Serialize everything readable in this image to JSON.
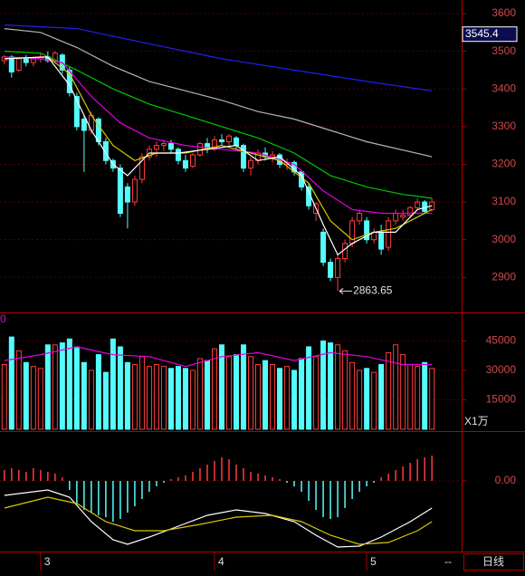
{
  "chart_data": [
    {
      "type": "candlestick",
      "ohlc": [
        [
          3475,
          3490,
          3465,
          3485
        ],
        [
          3485,
          3490,
          3430,
          3445
        ],
        [
          3450,
          3485,
          3445,
          3480
        ],
        [
          3480,
          3490,
          3460,
          3470
        ],
        [
          3470,
          3485,
          3460,
          3480
        ],
        [
          3480,
          3495,
          3470,
          3485
        ],
        [
          3485,
          3500,
          3470,
          3475
        ],
        [
          3475,
          3500,
          3470,
          3495
        ],
        [
          3490,
          3495,
          3440,
          3450
        ],
        [
          3450,
          3460,
          3380,
          3390
        ],
        [
          3380,
          3390,
          3290,
          3300
        ],
        [
          3320,
          3330,
          3180,
          3290
        ],
        [
          3290,
          3340,
          3280,
          3330
        ],
        [
          3320,
          3325,
          3250,
          3260
        ],
        [
          3260,
          3270,
          3200,
          3210
        ],
        [
          3210,
          3215,
          3180,
          3190
        ],
        [
          3190,
          3200,
          3060,
          3070
        ],
        [
          3140,
          3150,
          3030,
          3100
        ],
        [
          3100,
          3170,
          3090,
          3160
        ],
        [
          3160,
          3230,
          3150,
          3220
        ],
        [
          3220,
          3250,
          3210,
          3240
        ],
        [
          3240,
          3260,
          3220,
          3250
        ],
        [
          3250,
          3265,
          3235,
          3255
        ],
        [
          3255,
          3265,
          3230,
          3240
        ],
        [
          3240,
          3245,
          3200,
          3210
        ],
        [
          3210,
          3225,
          3180,
          3190
        ],
        [
          3195,
          3230,
          3190,
          3225
        ],
        [
          3225,
          3260,
          3220,
          3255
        ],
        [
          3255,
          3270,
          3230,
          3240
        ],
        [
          3240,
          3275,
          3235,
          3265
        ],
        [
          3265,
          3280,
          3250,
          3260
        ],
        [
          3260,
          3280,
          3245,
          3275
        ],
        [
          3270,
          3275,
          3240,
          3250
        ],
        [
          3250,
          3255,
          3180,
          3190
        ],
        [
          3190,
          3220,
          3170,
          3210
        ],
        [
          3210,
          3240,
          3200,
          3230
        ],
        [
          3230,
          3245,
          3210,
          3220
        ],
        [
          3220,
          3235,
          3205,
          3225
        ],
        [
          3225,
          3230,
          3190,
          3200
        ],
        [
          3200,
          3215,
          3185,
          3205
        ],
        [
          3205,
          3210,
          3170,
          3180
        ],
        [
          3180,
          3185,
          3130,
          3140
        ],
        [
          3140,
          3150,
          3080,
          3090
        ],
        [
          3070,
          3100,
          3050,
          3095
        ],
        [
          3020,
          3030,
          2930,
          2940
        ],
        [
          2940,
          2950,
          2890,
          2900
        ],
        [
          2900,
          2960,
          2863.65,
          2950
        ],
        [
          2950,
          3000,
          2940,
          2990
        ],
        [
          2990,
          3060,
          2980,
          3050
        ],
        [
          3050,
          3080,
          3040,
          3070
        ],
        [
          3050,
          3060,
          2990,
          3000
        ],
        [
          3000,
          3030,
          2990,
          3020
        ],
        [
          3020,
          3040,
          2960,
          2975
        ],
        [
          2980,
          3060,
          2970,
          3050
        ],
        [
          3050,
          3080,
          3040,
          3070
        ],
        [
          3060,
          3080,
          3050,
          3065
        ],
        [
          3065,
          3090,
          3060,
          3085
        ],
        [
          3085,
          3110,
          3080,
          3100
        ],
        [
          3100,
          3105,
          3070,
          3075
        ],
        [
          3080,
          3110,
          3075,
          3100
        ]
      ],
      "up_color": "#ff3c3c",
      "down_color": "#54fcfc",
      "xlim": [
        -0.6,
        63.1
      ],
      "xticks": [
        {
          "value": 5,
          "label": "3"
        },
        {
          "value": 29,
          "label": "4"
        },
        {
          "value": 50,
          "label": "5"
        }
      ],
      "ylim": [
        2807,
        3636
      ],
      "yticks": [
        2900,
        3000,
        3100,
        3200,
        3300,
        3400,
        3500,
        3600
      ],
      "grid": true,
      "lines": [
        {
          "color": "#2020f0",
          "x": [
            0,
            10,
            20,
            30,
            40,
            50,
            59
          ],
          "values": [
            3570,
            3560,
            3520,
            3480,
            3450,
            3420,
            3395
          ]
        },
        {
          "color": "#b4b4b4",
          "x": [
            0,
            5,
            10,
            15,
            20,
            25,
            30,
            35,
            40,
            45,
            50,
            59
          ],
          "values": [
            3560,
            3550,
            3510,
            3460,
            3420,
            3395,
            3370,
            3340,
            3320,
            3290,
            3260,
            3220
          ]
        },
        {
          "color": "#00c800",
          "x": [
            0,
            5,
            10,
            15,
            20,
            25,
            30,
            35,
            40,
            45,
            50,
            55,
            59
          ],
          "values": [
            3500,
            3495,
            3450,
            3400,
            3360,
            3330,
            3300,
            3270,
            3230,
            3170,
            3140,
            3120,
            3110
          ]
        },
        {
          "color": "#e000e0",
          "x": [
            0,
            5,
            8,
            12,
            16,
            20,
            25,
            30,
            35,
            40,
            44,
            48,
            52,
            56,
            59
          ],
          "values": [
            3485,
            3480,
            3470,
            3380,
            3310,
            3270,
            3250,
            3240,
            3230,
            3200,
            3130,
            3080,
            3070,
            3070,
            3070
          ]
        },
        {
          "color": "#d8c800",
          "x": [
            0,
            6,
            9,
            12,
            15,
            18,
            21,
            25,
            30,
            34,
            38,
            42,
            45,
            48,
            51,
            54,
            57,
            59
          ],
          "values": [
            3480,
            3485,
            3440,
            3330,
            3250,
            3210,
            3230,
            3230,
            3250,
            3230,
            3210,
            3150,
            3050,
            3000,
            3020,
            3030,
            3060,
            3080
          ]
        },
        {
          "color": "#ffffff",
          "x": [
            0,
            6,
            9,
            12,
            15,
            17,
            20,
            24,
            28,
            32,
            35,
            38,
            41,
            44,
            46,
            48,
            51,
            54,
            57,
            59
          ],
          "values": [
            3480,
            3485,
            3410,
            3290,
            3200,
            3170,
            3230,
            3230,
            3240,
            3250,
            3210,
            3220,
            3170,
            3040,
            2960,
            2990,
            3020,
            3020,
            3080,
            3090
          ]
        }
      ],
      "marker_label": 3545.4,
      "low_annotation": 2863.65
    },
    {
      "type": "bar",
      "values": [
        33000,
        47000,
        40000,
        34000,
        32000,
        31000,
        43000,
        43000,
        44000,
        46000,
        42000,
        34000,
        30000,
        38000,
        29000,
        46000,
        42000,
        34000,
        33000,
        37000,
        32000,
        33000,
        32000,
        31000,
        32000,
        31000,
        30000,
        36000,
        35000,
        41000,
        43000,
        37000,
        38000,
        43000,
        37000,
        33000,
        35000,
        33000,
        31000,
        32000,
        30000,
        36000,
        42000,
        37000,
        45000,
        44000,
        43000,
        40000,
        34000,
        30000,
        31000,
        29000,
        33000,
        39000,
        43000,
        38000,
        33000,
        32000,
        34000,
        31000
      ],
      "ylim": [
        0,
        59500
      ],
      "yticks": [
        15000,
        30000,
        45000
      ],
      "lines": [
        {
          "color": "#e000e0",
          "x": [
            0,
            5,
            10,
            15,
            20,
            25,
            30,
            35,
            40,
            45,
            50,
            55,
            59
          ],
          "values": [
            35000,
            38000,
            42000,
            38000,
            37000,
            32000,
            37000,
            39000,
            35000,
            39000,
            37000,
            33000,
            33000
          ]
        }
      ],
      "unit_label": "X1万",
      "head_label": "0"
    },
    {
      "type": "macd",
      "histogram": [
        12,
        14,
        12,
        10,
        14,
        12,
        10,
        8,
        4,
        -10,
        -25,
        -32,
        -35,
        -38,
        -40,
        -45,
        -42,
        -35,
        -28,
        -20,
        -12,
        -6,
        -2,
        2,
        4,
        6,
        10,
        14,
        18,
        22,
        26,
        24,
        18,
        14,
        10,
        8,
        6,
        4,
        2,
        -2,
        -6,
        -12,
        -22,
        -32,
        -40,
        -42,
        -40,
        -30,
        -20,
        -12,
        -6,
        -2,
        4,
        8,
        12,
        16,
        20,
        24,
        26,
        28
      ],
      "ylim": [
        -77,
        53
      ],
      "yticks": [
        {
          "value": 0,
          "label": "0.00"
        }
      ],
      "lines": [
        {
          "color": "#ffffff",
          "x": [
            0,
            6,
            9,
            12,
            15,
            17,
            20,
            24,
            28,
            32,
            36,
            40,
            43,
            46,
            49,
            52,
            56,
            59
          ],
          "values": [
            -16,
            -10,
            -18,
            -45,
            -65,
            -70,
            -62,
            -50,
            -38,
            -32,
            -36,
            -45,
            -60,
            -73,
            -72,
            -62,
            -45,
            -30
          ]
        },
        {
          "color": "#d8c800",
          "x": [
            0,
            6,
            10,
            14,
            18,
            22,
            27,
            32,
            37,
            41,
            45,
            49,
            53,
            57,
            59
          ],
          "values": [
            -30,
            -18,
            -25,
            -45,
            -55,
            -55,
            -48,
            -40,
            -38,
            -45,
            -60,
            -70,
            -68,
            -55,
            -45
          ]
        }
      ]
    }
  ],
  "footer": {
    "period": "日线",
    "status": "--"
  }
}
